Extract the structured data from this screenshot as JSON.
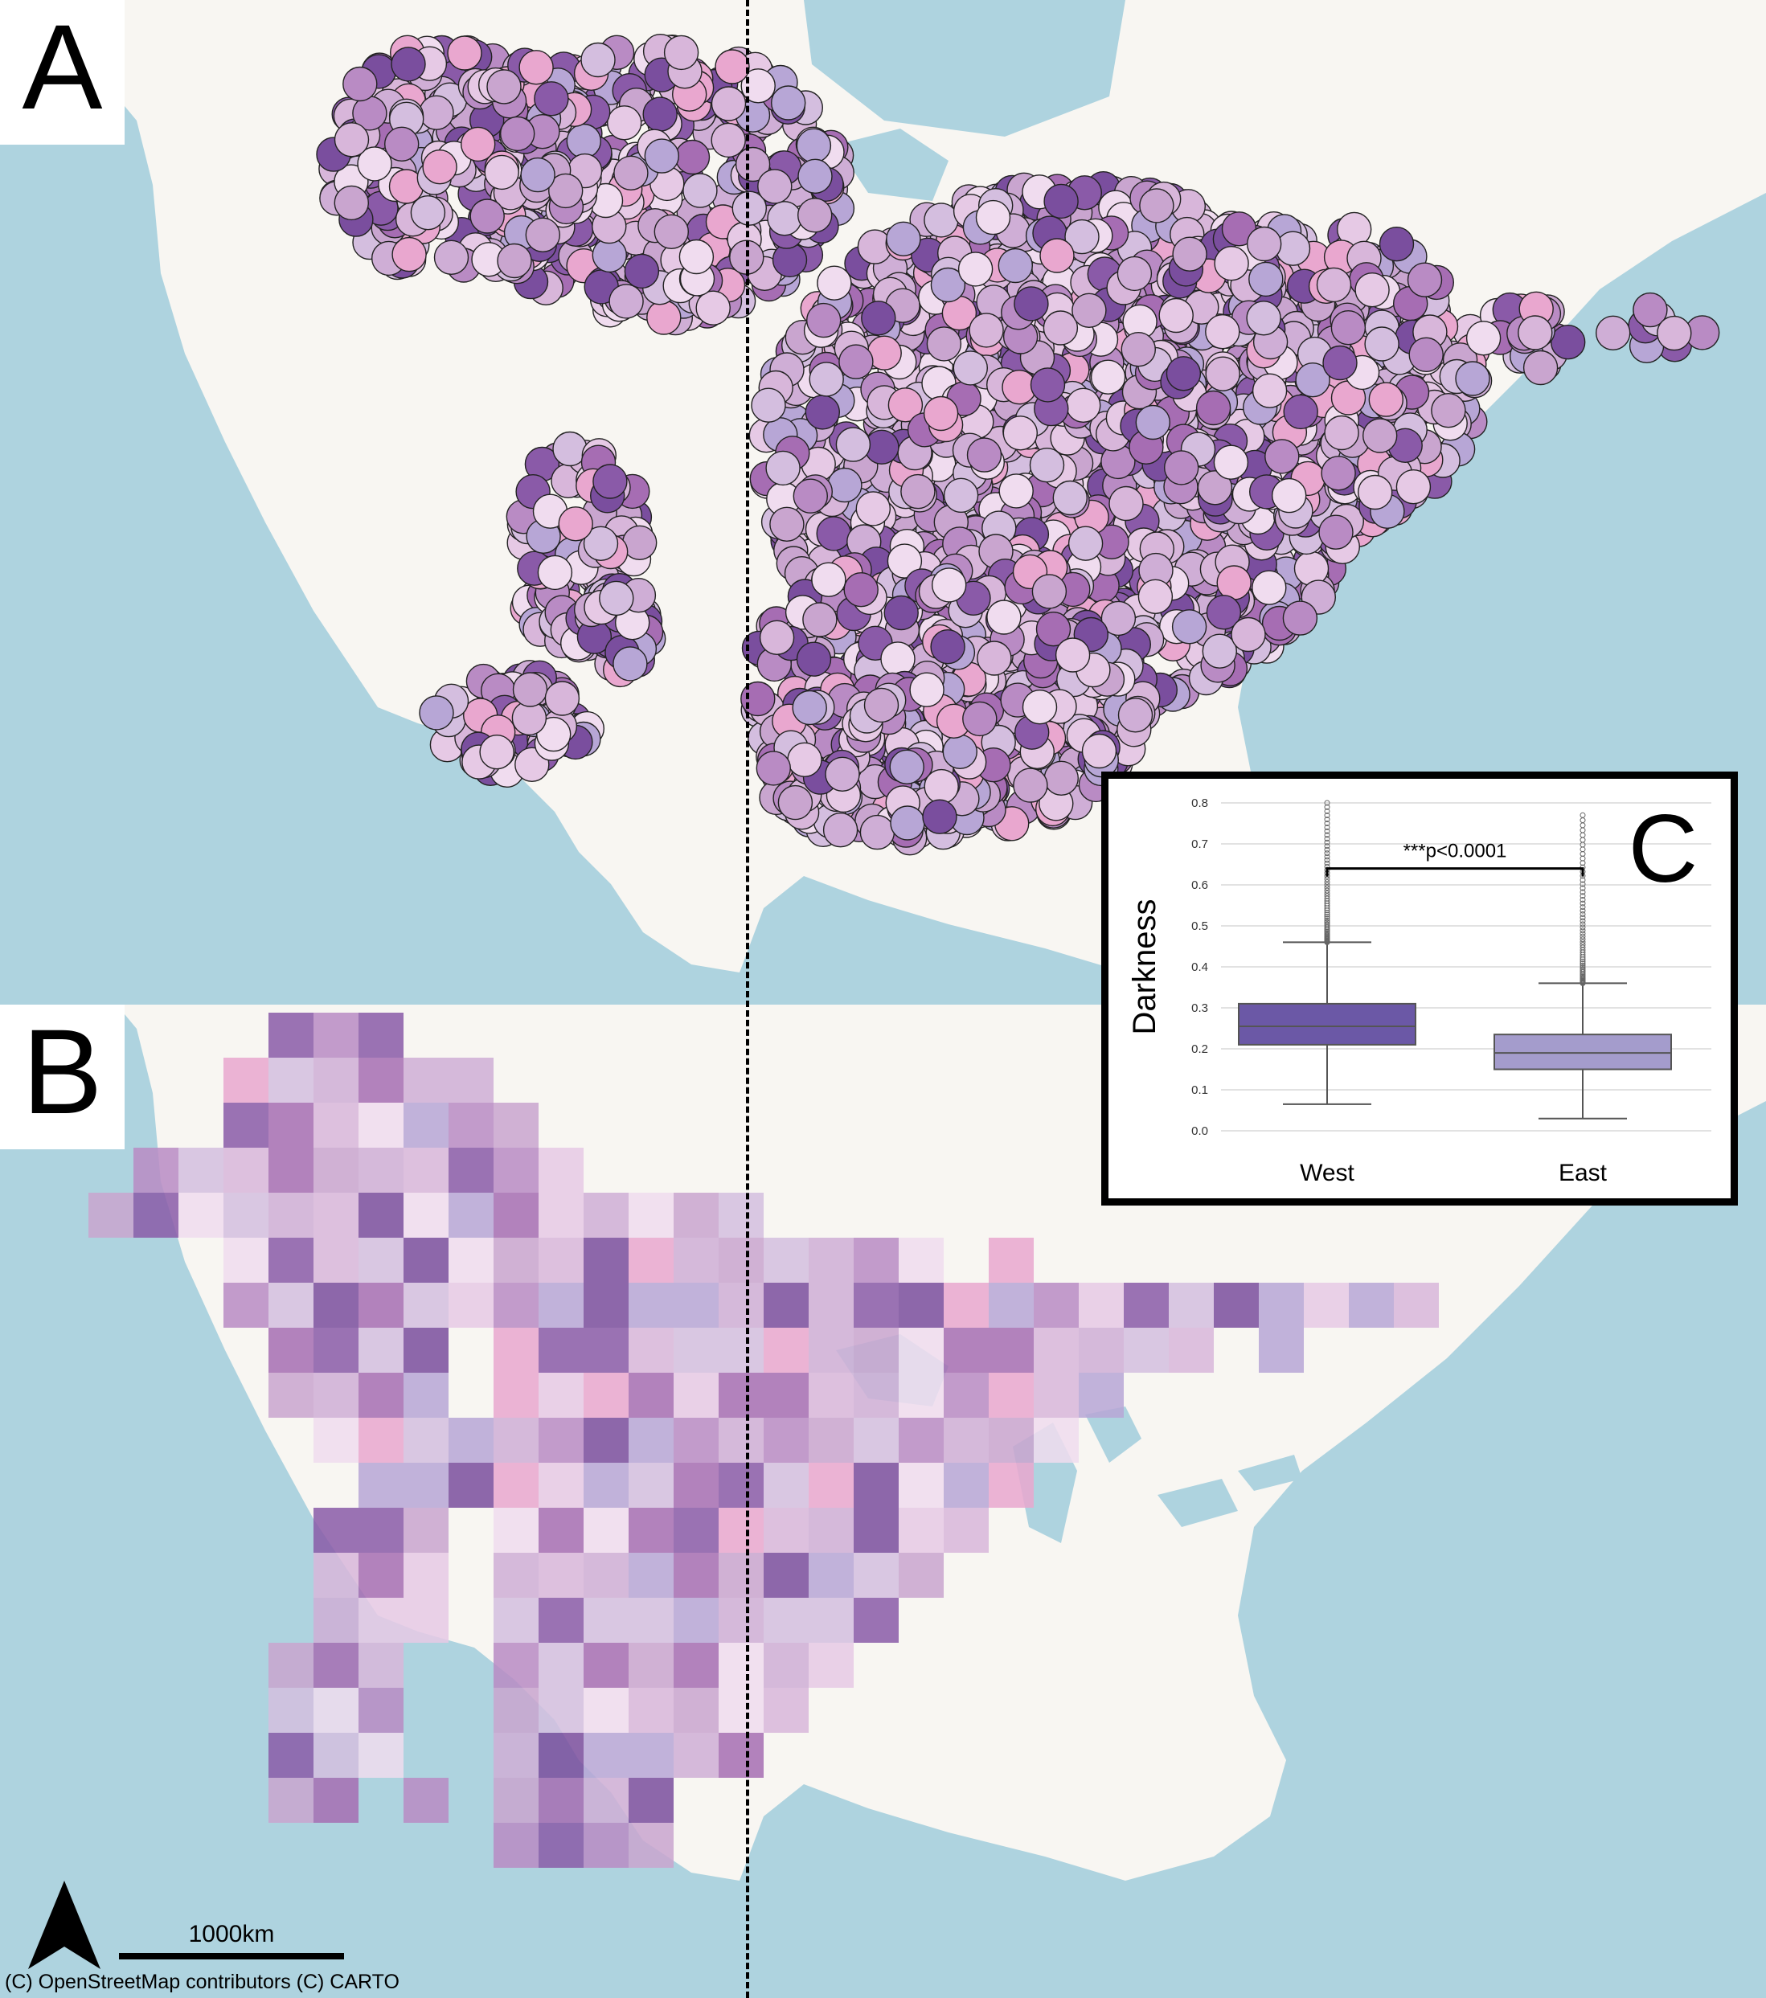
{
  "panels": {
    "a_label": "A",
    "b_label": "B",
    "c_label": "C"
  },
  "map": {
    "land_color": "#f8f6f2",
    "water_color": "#aed3df",
    "attribution": "(C) OpenStreetMap contributors (C) CARTO",
    "scale_label": "1000km",
    "north_arrow": "north-arrow-icon"
  },
  "colors": {
    "palette": [
      "#c9a5cf",
      "#b98bc4",
      "#d8b6da",
      "#e6c9e5",
      "#a66db3",
      "#8a5aa8",
      "#cfaed6",
      "#b7a6d6",
      "#e9a7cf",
      "#7a4e9e",
      "#d4bedf",
      "#f0dcef"
    ],
    "west_box": "#6b58a6",
    "east_box": "#a49ccc"
  },
  "chart_data": {
    "type": "box",
    "categories": [
      "West",
      "East"
    ],
    "ylabel": "Darkness",
    "xlabel": "",
    "ylim": [
      0.0,
      0.8
    ],
    "yticks": [
      "0.0",
      "0.1",
      "0.2",
      "0.3",
      "0.4",
      "0.5",
      "0.6",
      "0.7",
      "0.8"
    ],
    "annotation": "***p<0.0001",
    "series": [
      {
        "whisker_low": 0.065,
        "q1": 0.21,
        "median": 0.255,
        "q3": 0.31,
        "whisker_high": 0.46,
        "outlier_min": 0.46,
        "outlier_max": 0.8
      },
      {
        "whisker_low": 0.03,
        "q1": 0.15,
        "median": 0.19,
        "q3": 0.235,
        "whisker_high": 0.36,
        "outlier_min": 0.36,
        "outlier_max": 0.77
      }
    ]
  }
}
